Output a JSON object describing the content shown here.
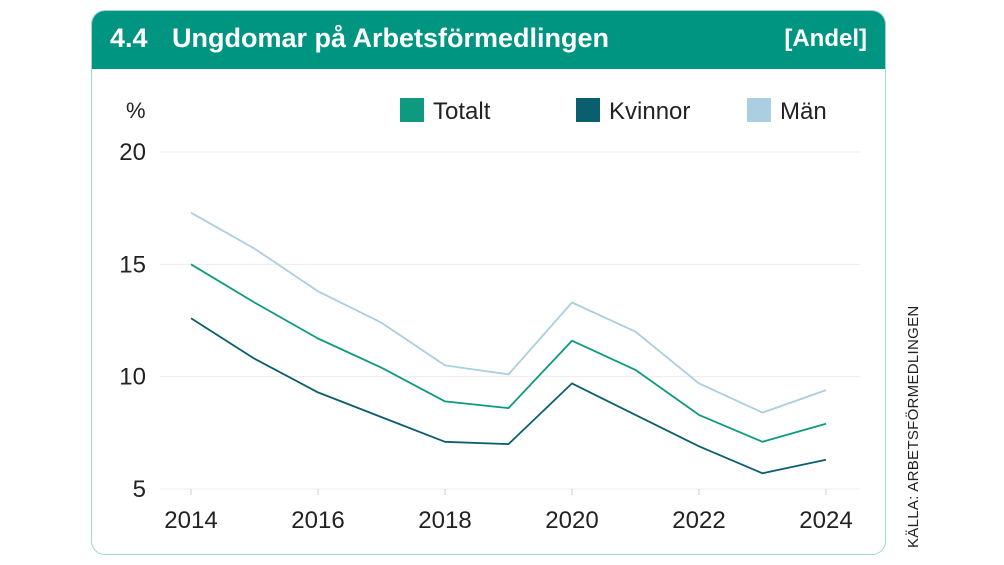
{
  "header": {
    "number": "4.4",
    "title": "Ungdomar på Arbetsförmedlingen",
    "badge": "[Andel]"
  },
  "source": "KÄLLA: ARBETSFÖRMEDLINGEN",
  "colors": {
    "header_bg": "#009580",
    "totalt": "#0e9a80",
    "kvinnor": "#0b5e6e",
    "man": "#a9cfe0"
  },
  "chart_data": {
    "type": "line",
    "ylabel": "%",
    "ylim": [
      5,
      20
    ],
    "yticks": [
      5,
      10,
      15,
      20
    ],
    "xlim": [
      2014,
      2024
    ],
    "xticks": [
      2014,
      2016,
      2018,
      2020,
      2022,
      2024
    ],
    "grid": true,
    "legend_position": "top-right",
    "x": [
      2014,
      2015,
      2016,
      2017,
      2018,
      2019,
      2020,
      2021,
      2022,
      2023,
      2024
    ],
    "series": [
      {
        "name": "Totalt",
        "color": "#0e9a80",
        "values": [
          15.0,
          13.3,
          11.7,
          10.4,
          8.9,
          8.6,
          11.6,
          10.3,
          8.3,
          7.1,
          7.9
        ]
      },
      {
        "name": "Kvinnor",
        "color": "#0b5e6e",
        "values": [
          12.6,
          10.8,
          9.3,
          8.2,
          7.1,
          7.0,
          9.7,
          8.3,
          6.9,
          5.7,
          6.3
        ]
      },
      {
        "name": "Män",
        "color": "#a9cfe0",
        "values": [
          17.3,
          15.7,
          13.8,
          12.4,
          10.5,
          10.1,
          13.3,
          12.0,
          9.7,
          8.4,
          9.4
        ]
      }
    ]
  }
}
